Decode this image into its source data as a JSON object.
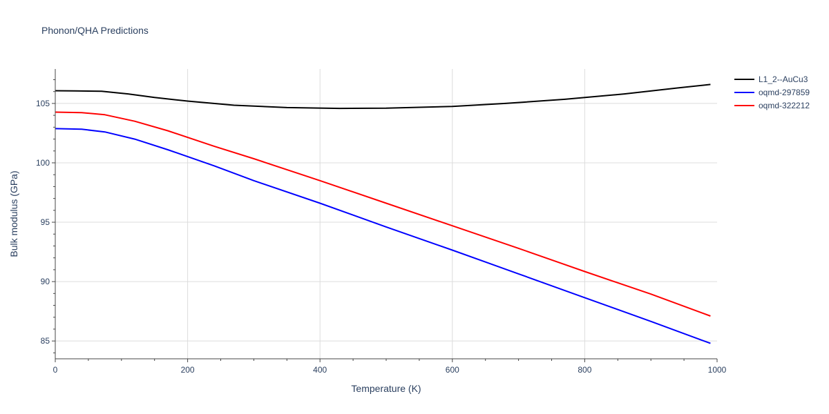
{
  "chart_data": {
    "type": "line",
    "title": "Phonon/QHA Predictions",
    "xlabel": "Temperature (K)",
    "ylabel": "Bulk modulus (GPa)",
    "xlim": [
      0,
      1000
    ],
    "ylim": [
      83.5,
      107.9
    ],
    "xticks": [
      0,
      200,
      400,
      600,
      800,
      1000
    ],
    "xtick_labels": [
      "0",
      "200",
      "400",
      "600",
      "800",
      "1000"
    ],
    "yticks": [
      85,
      90,
      95,
      100,
      105
    ],
    "ytick_labels": [
      "85",
      "90",
      "95",
      "100",
      "105"
    ],
    "grid": true,
    "legend_position": "top-right",
    "series": [
      {
        "name": "L1_2--AuCu3",
        "color": "#000000",
        "x": [
          0,
          30,
          70,
          110,
          150,
          200,
          270,
          350,
          430,
          500,
          600,
          680,
          770,
          860,
          940,
          990
        ],
        "y": [
          106.07,
          106.06,
          106.03,
          105.8,
          105.5,
          105.2,
          104.85,
          104.65,
          104.58,
          104.6,
          104.75,
          105.0,
          105.35,
          105.8,
          106.3,
          106.6
        ]
      },
      {
        "name": "oqmd-297859",
        "color": "#0000ff",
        "x": [
          0,
          40,
          75,
          120,
          170,
          240,
          300,
          400,
          500,
          600,
          700,
          800,
          900,
          990
        ],
        "y": [
          102.88,
          102.83,
          102.6,
          102.0,
          101.1,
          99.75,
          98.5,
          96.6,
          94.6,
          92.65,
          90.65,
          88.65,
          86.65,
          84.8
        ]
      },
      {
        "name": "oqmd-322212",
        "color": "#ff0000",
        "x": [
          0,
          40,
          75,
          120,
          170,
          240,
          300,
          400,
          500,
          600,
          700,
          800,
          900,
          990
        ],
        "y": [
          104.27,
          104.23,
          104.05,
          103.5,
          102.7,
          101.4,
          100.35,
          98.5,
          96.6,
          94.7,
          92.8,
          90.85,
          88.95,
          87.1
        ]
      }
    ]
  }
}
